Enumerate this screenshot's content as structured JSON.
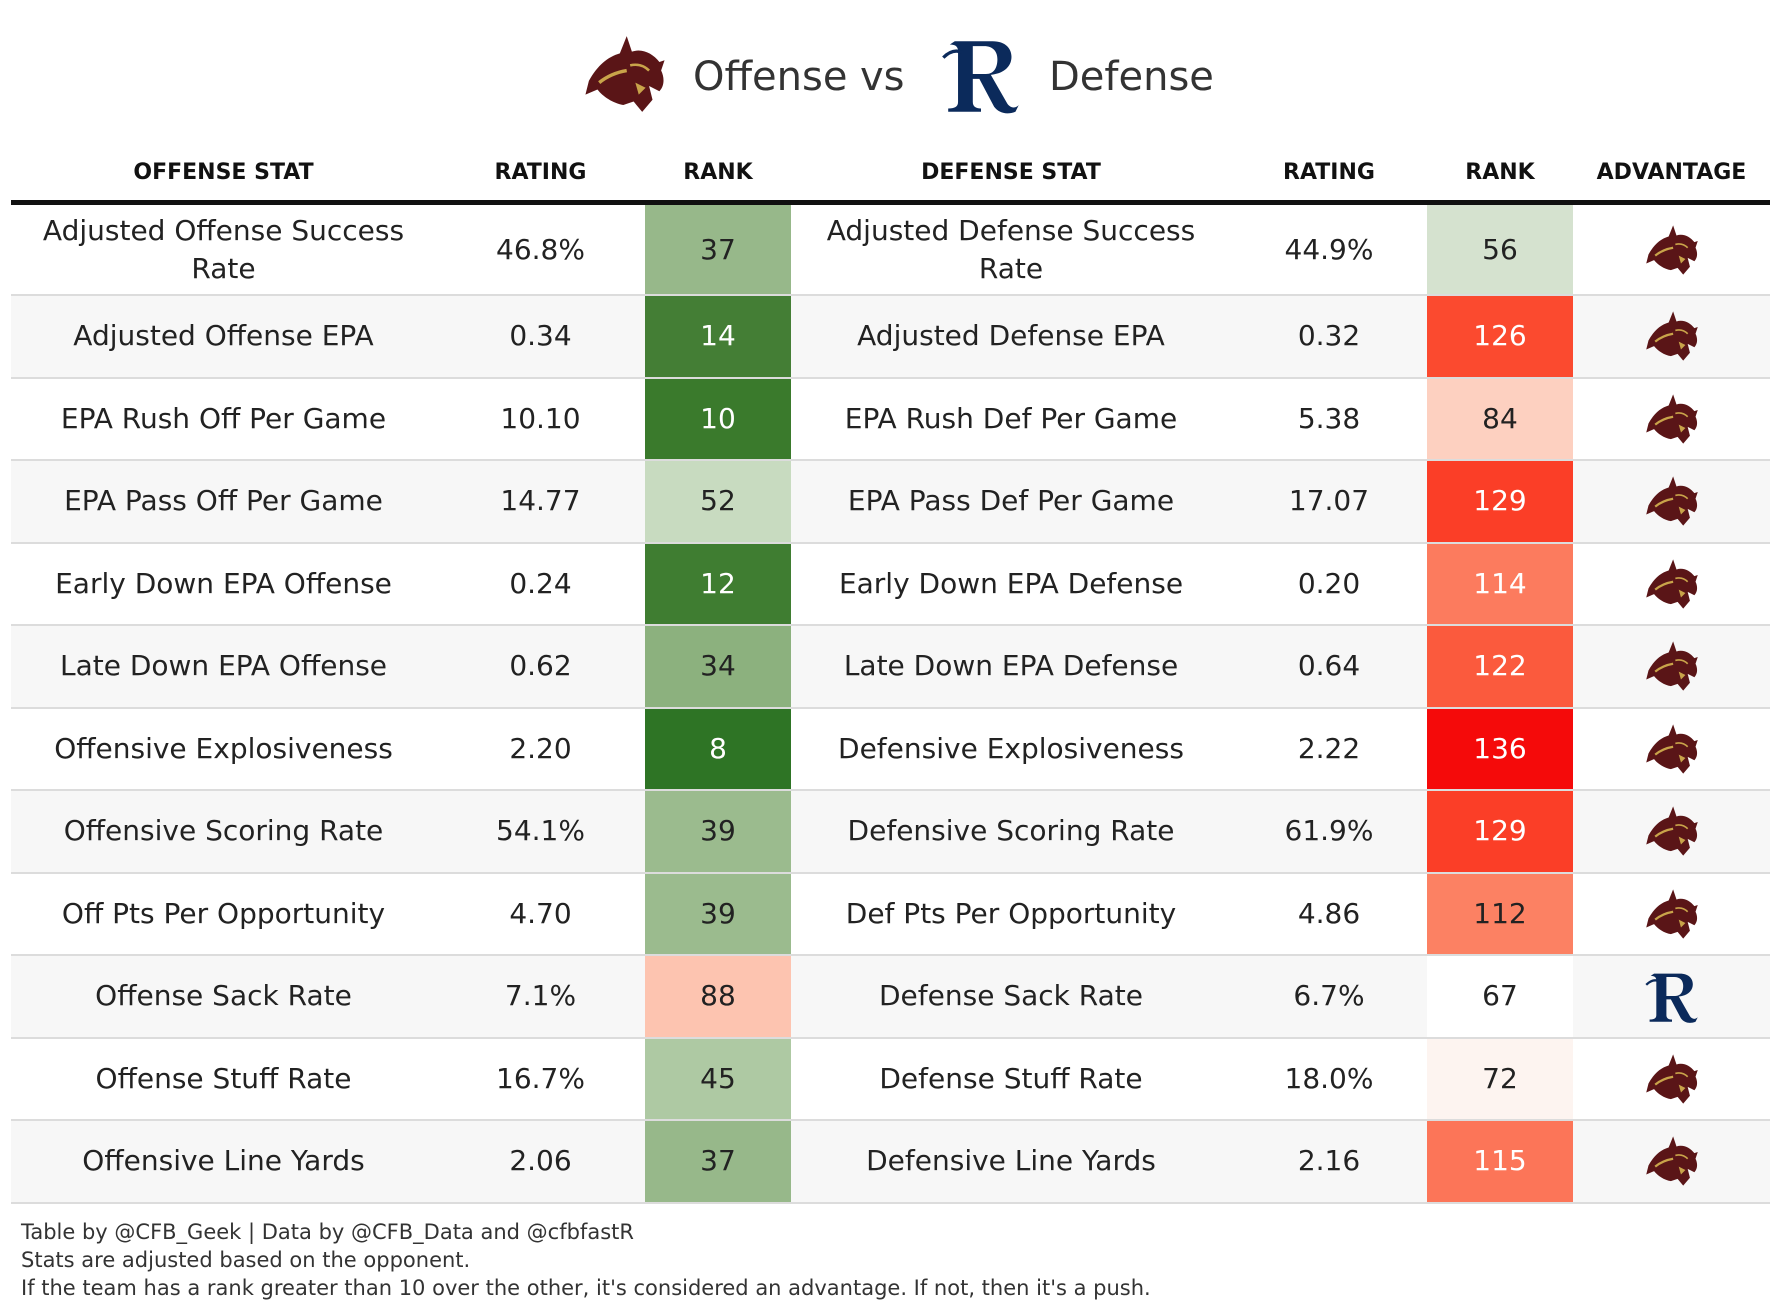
{
  "header": {
    "offense_title": "Offense",
    "vs": "vs",
    "defense_title": "Defense"
  },
  "table": {
    "columns": [
      "OFFENSE STAT",
      "RATING",
      "RANK",
      "DEFENSE STAT",
      "RATING",
      "RANK",
      "ADVANTAGE"
    ],
    "rows": [
      {
        "offense_stat": "Adjusted Offense Success Rate",
        "offense_rating": "46.8%",
        "offense_rank": 37,
        "offense_rank_color": "#97b88a",
        "offense_rank_text_color": "#222222",
        "defense_stat": "Adjusted Defense Success Rate",
        "defense_rating": "44.9%",
        "defense_rank": 56,
        "defense_rank_color": "#d5e2cf",
        "defense_rank_text_color": "#222222",
        "advantage": "offense"
      },
      {
        "offense_stat": "Adjusted Offense EPA",
        "offense_rating": "0.34",
        "offense_rank": 14,
        "offense_rank_color": "#447e35",
        "offense_rank_text_color": "#ffffff",
        "defense_stat": "Adjusted Defense EPA",
        "defense_rating": "0.32",
        "defense_rank": 126,
        "defense_rank_color": "#fb4a2f",
        "defense_rank_text_color": "#ffffff",
        "advantage": "offense"
      },
      {
        "offense_stat": "EPA Rush Off Per Game",
        "offense_rating": "10.10",
        "offense_rank": 10,
        "offense_rank_color": "#3a7a2c",
        "offense_rank_text_color": "#ffffff",
        "defense_stat": "EPA Rush Def Per Game",
        "defense_rating": "5.38",
        "defense_rank": 84,
        "defense_rank_color": "#fdd0c0",
        "defense_rank_text_color": "#222222",
        "advantage": "offense"
      },
      {
        "offense_stat": "EPA Pass Off Per Game",
        "offense_rating": "14.77",
        "offense_rank": 52,
        "offense_rank_color": "#c8dbc0",
        "offense_rank_text_color": "#222222",
        "defense_stat": "EPA Pass Def Per Game",
        "defense_rating": "17.07",
        "defense_rank": 129,
        "defense_rank_color": "#fb3e27",
        "defense_rank_text_color": "#ffffff",
        "advantage": "offense"
      },
      {
        "offense_stat": "Early Down EPA Offense",
        "offense_rating": "0.24",
        "offense_rank": 12,
        "offense_rank_color": "#3f7d31",
        "offense_rank_text_color": "#ffffff",
        "defense_stat": "Early Down EPA Defense",
        "defense_rating": "0.20",
        "defense_rank": 114,
        "defense_rank_color": "#fc7b5e",
        "defense_rank_text_color": "#ffffff",
        "advantage": "offense"
      },
      {
        "offense_stat": "Late Down EPA Offense",
        "offense_rating": "0.62",
        "offense_rank": 34,
        "offense_rank_color": "#8cb17e",
        "offense_rank_text_color": "#222222",
        "defense_stat": "Late Down EPA Defense",
        "defense_rating": "0.64",
        "defense_rank": 122,
        "defense_rank_color": "#fb5a3d",
        "defense_rank_text_color": "#ffffff",
        "advantage": "offense"
      },
      {
        "offense_stat": "Offensive Explosiveness",
        "offense_rating": "2.20",
        "offense_rank": 8,
        "offense_rank_color": "#2e7425",
        "offense_rank_text_color": "#ffffff",
        "defense_stat": "Defensive Explosiveness",
        "defense_rating": "2.22",
        "defense_rank": 136,
        "defense_rank_color": "#f50a0a",
        "defense_rank_text_color": "#ffffff",
        "advantage": "offense"
      },
      {
        "offense_stat": "Offensive Scoring Rate",
        "offense_rating": "54.1%",
        "offense_rank": 39,
        "offense_rank_color": "#9bbb8e",
        "offense_rank_text_color": "#222222",
        "defense_stat": "Defensive Scoring Rate",
        "defense_rating": "61.9%",
        "defense_rank": 129,
        "defense_rank_color": "#fb3e27",
        "defense_rank_text_color": "#ffffff",
        "advantage": "offense"
      },
      {
        "offense_stat": "Off Pts Per Opportunity",
        "offense_rating": "4.70",
        "offense_rank": 39,
        "offense_rank_color": "#9bbb8e",
        "offense_rank_text_color": "#222222",
        "defense_stat": "Def Pts Per Opportunity",
        "defense_rating": "4.86",
        "defense_rank": 112,
        "defense_rank_color": "#fc8163",
        "defense_rank_text_color": "#222222",
        "advantage": "offense"
      },
      {
        "offense_stat": "Offense Sack Rate",
        "offense_rating": "7.1%",
        "offense_rank": 88,
        "offense_rank_color": "#fdc4b0",
        "offense_rank_text_color": "#222222",
        "defense_stat": "Defense Sack Rate",
        "defense_rating": "6.7%",
        "defense_rank": 67,
        "defense_rank_color": "#ffffff",
        "defense_rank_text_color": "#222222",
        "advantage": "defense"
      },
      {
        "offense_stat": "Offense Stuff Rate",
        "offense_rating": "16.7%",
        "offense_rank": 45,
        "offense_rank_color": "#aec9a3",
        "offense_rank_text_color": "#222222",
        "defense_stat": "Defense Stuff Rate",
        "defense_rating": "18.0%",
        "defense_rank": 72,
        "defense_rank_color": "#fdf4f0",
        "defense_rank_text_color": "#222222",
        "advantage": "offense"
      },
      {
        "offense_stat": "Offensive Line Yards",
        "offense_rating": "2.06",
        "offense_rank": 37,
        "offense_rank_color": "#97b88a",
        "offense_rank_text_color": "#222222",
        "defense_stat": "Defensive Line Yards",
        "defense_rating": "2.16",
        "defense_rank": 115,
        "defense_rank_color": "#fc7558",
        "defense_rank_text_color": "#ffffff",
        "advantage": "offense"
      }
    ]
  },
  "footer": {
    "lines": [
      "Table by @CFB_Geek | Data by @CFB_Data and @cfbfastR",
      "Stats are adjusted based on the opponent.",
      "If the team has a rank greater than 10 over the other, it's considered an advantage. If not, then it's a push."
    ]
  }
}
